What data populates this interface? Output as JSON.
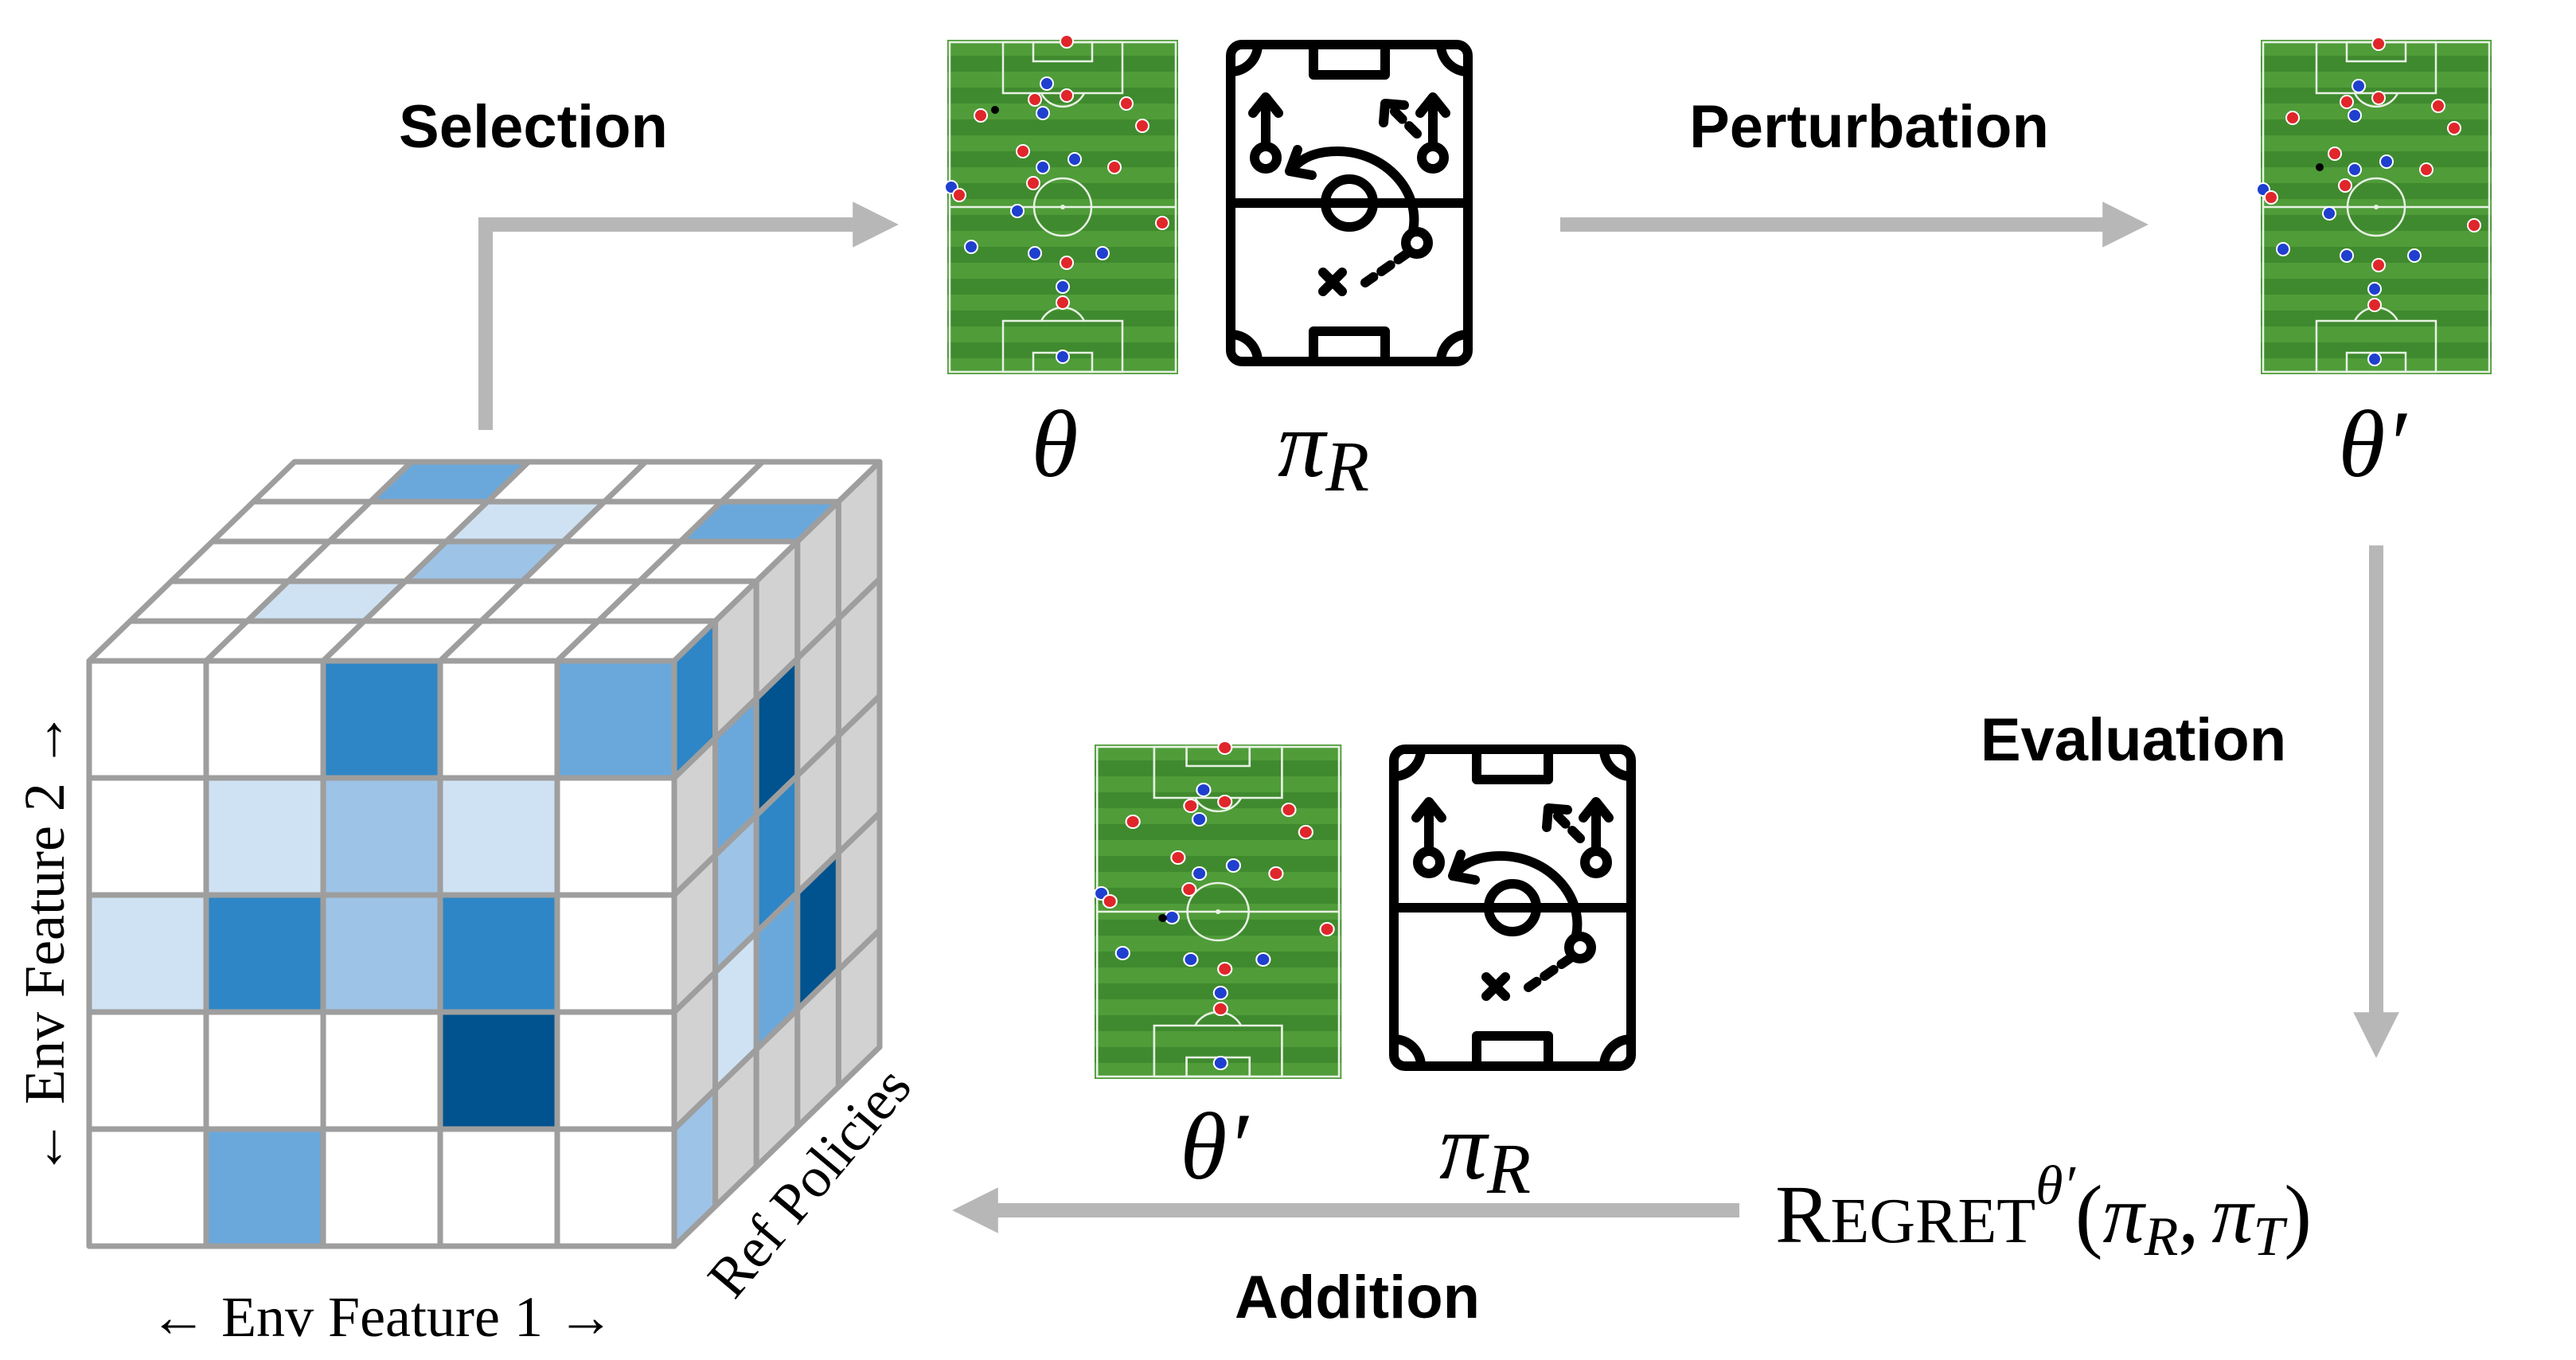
{
  "steps": {
    "selection": "Selection",
    "perturbation": "Perturbation",
    "evaluation": "Evaluation",
    "addition": "Addition"
  },
  "symbols": {
    "theta": "θ",
    "theta_prime": "θ′",
    "pi": "π",
    "sub_R": "R",
    "sub_T": "T",
    "regret_R": "R",
    "regret_rest": "EGRET",
    "regret_sup": "θ′",
    "regret_args_open": "(",
    "regret_args_comma": ",",
    "regret_args_close": ")"
  },
  "axes": {
    "env_feature_1": "← Env Feature 1 →",
    "env_feature_2": "← Env Feature 2 →",
    "ref_policies": "Ref Policies"
  },
  "colors": {
    "arrow": "#b7b7b7",
    "grid_line": "#9e9e9e",
    "side_face": "#d2d2d2",
    "pitch_dark": "#3f8a2e",
    "pitch_light": "#4f9c39",
    "team_red": "#e0262b",
    "team_blue": "#1f3fcf",
    "shade_1": "#cfe2f3",
    "shade_2": "#9dc3e6",
    "shade_3": "#6aa8dc",
    "shade_4": "#2e86c6",
    "shade_5": "#00538e"
  },
  "front_grid": [
    [
      0,
      0,
      4,
      0,
      3
    ],
    [
      0,
      1,
      2,
      1,
      0
    ],
    [
      1,
      4,
      2,
      4,
      0
    ],
    [
      0,
      0,
      0,
      5,
      0
    ],
    [
      0,
      3,
      0,
      0,
      0
    ]
  ]
}
